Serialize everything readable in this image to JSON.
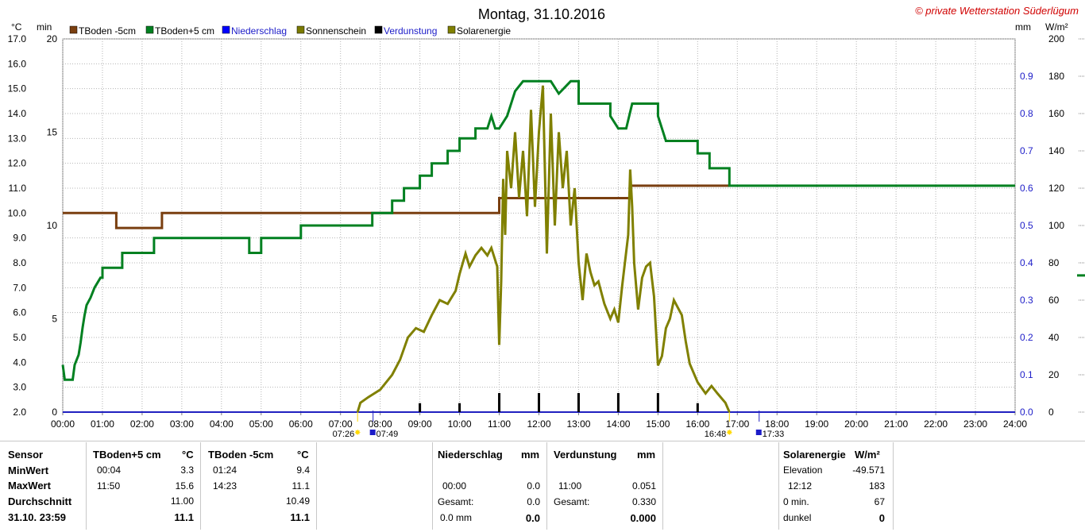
{
  "chart_data": {
    "type": "line",
    "title": "Montag, 31.10.2016",
    "copyright": "© private Wetterstation Süderlügum",
    "axis_labels": {
      "left_temp": "°C",
      "left_min": "min",
      "right_mm": "mm",
      "right_wm2": "W/m²"
    },
    "ylim_temp": [
      2.0,
      17.0
    ],
    "yticks_temp": [
      "17.0",
      "16.0",
      "15.0",
      "14.0",
      "13.0",
      "12.0",
      "11.0",
      "10.0",
      "9.0",
      "8.0",
      "7.0",
      "6.0",
      "5.0",
      "4.0",
      "3.0",
      "2.0"
    ],
    "ylim_min": [
      0,
      20
    ],
    "yticks_min": [
      "20",
      "15",
      "10",
      "5",
      "0"
    ],
    "ylim_mm": [
      0.0,
      1.0
    ],
    "yticks_mm": [
      "0.9",
      "0.8",
      "0.7",
      "0.6",
      "0.5",
      "0.4",
      "0.3",
      "0.2",
      "0.1",
      "0.0"
    ],
    "ylim_wm2": [
      0,
      200
    ],
    "yticks_wm2": [
      "200",
      "180",
      "160",
      "140",
      "120",
      "100",
      "80",
      "60",
      "40",
      "20",
      "0"
    ],
    "xlim_hours": [
      0,
      24
    ],
    "xticks": [
      "00:00",
      "01:00",
      "02:00",
      "03:00",
      "04:00",
      "05:00",
      "06:00",
      "07:00",
      "08:00",
      "09:00",
      "10:00",
      "11:00",
      "12:00",
      "13:00",
      "14:00",
      "15:00",
      "16:00",
      "17:00",
      "18:00",
      "19:00",
      "20:00",
      "21:00",
      "22:00",
      "23:00",
      "24:00"
    ],
    "grid": true,
    "legend_position": "top-left",
    "sun_times": {
      "sunrise": "07:26",
      "sunrise_h": 7.43,
      "dawn": "07:49",
      "dawn_h": 7.82,
      "sunset": "16:48",
      "sunset_h": 16.8,
      "dusk": "17:33",
      "dusk_h": 17.55
    },
    "series": [
      {
        "name": "TBoden -5cm",
        "color": "#7a3f10",
        "axis": "temp",
        "step": true,
        "points": [
          [
            0,
            10.0
          ],
          [
            1.35,
            10.0
          ],
          [
            1.35,
            9.4
          ],
          [
            2.5,
            9.4
          ],
          [
            2.5,
            10.0
          ],
          [
            11.0,
            10.0
          ],
          [
            11.0,
            10.6
          ],
          [
            14.3,
            10.6
          ],
          [
            14.3,
            11.1
          ],
          [
            16.8,
            11.1
          ]
        ]
      },
      {
        "name": "TBoden+5 cm",
        "color": "#008020",
        "axis": "temp",
        "step": true,
        "points": [
          [
            0,
            3.9
          ],
          [
            0.05,
            3.3
          ],
          [
            0.25,
            3.3
          ],
          [
            0.3,
            3.9
          ],
          [
            0.4,
            4.3
          ],
          [
            0.45,
            4.8
          ],
          [
            0.5,
            5.4
          ],
          [
            0.55,
            5.9
          ],
          [
            0.6,
            6.3
          ],
          [
            0.7,
            6.6
          ],
          [
            0.8,
            7.0
          ],
          [
            0.95,
            7.4
          ],
          [
            1.0,
            7.4
          ],
          [
            1.0,
            7.8
          ],
          [
            1.5,
            7.8
          ],
          [
            1.5,
            8.4
          ],
          [
            2.3,
            8.4
          ],
          [
            2.3,
            9.0
          ],
          [
            4.7,
            9.0
          ],
          [
            4.7,
            8.4
          ],
          [
            5.0,
            8.4
          ],
          [
            5.0,
            9.0
          ],
          [
            6.0,
            9.0
          ],
          [
            6.0,
            9.5
          ],
          [
            7.8,
            9.5
          ],
          [
            7.8,
            10.0
          ],
          [
            8.3,
            10.0
          ],
          [
            8.3,
            10.5
          ],
          [
            8.6,
            10.5
          ],
          [
            8.6,
            11.0
          ],
          [
            9.0,
            11.0
          ],
          [
            9.0,
            11.5
          ],
          [
            9.3,
            11.5
          ],
          [
            9.3,
            12.0
          ],
          [
            9.7,
            12.0
          ],
          [
            9.7,
            12.5
          ],
          [
            10.0,
            12.5
          ],
          [
            10.0,
            13.0
          ],
          [
            10.4,
            13.0
          ],
          [
            10.4,
            13.4
          ],
          [
            10.7,
            13.4
          ],
          [
            10.8,
            13.9
          ],
          [
            10.9,
            13.4
          ],
          [
            11.0,
            13.4
          ],
          [
            11.2,
            13.9
          ],
          [
            11.3,
            14.4
          ],
          [
            11.4,
            14.9
          ],
          [
            11.6,
            15.3
          ],
          [
            12.3,
            15.3
          ],
          [
            12.5,
            14.8
          ],
          [
            12.8,
            15.3
          ],
          [
            13.0,
            15.3
          ],
          [
            13.0,
            14.4
          ],
          [
            13.8,
            14.4
          ],
          [
            13.8,
            13.9
          ],
          [
            14.0,
            13.4
          ],
          [
            14.2,
            13.4
          ],
          [
            14.35,
            14.4
          ],
          [
            15.0,
            14.4
          ],
          [
            15.0,
            13.9
          ],
          [
            15.1,
            13.4
          ],
          [
            15.2,
            12.9
          ],
          [
            16.0,
            12.9
          ],
          [
            16.0,
            12.4
          ],
          [
            16.3,
            12.4
          ],
          [
            16.3,
            11.8
          ],
          [
            16.8,
            11.8
          ],
          [
            16.8,
            11.1
          ],
          [
            24.0,
            11.1
          ]
        ]
      },
      {
        "name": "Niederschlag",
        "color": "#0000ff",
        "axis": "mm",
        "bars": []
      },
      {
        "name": "Sonnenschein",
        "color": "#7a7a00",
        "axis": "min",
        "bars": []
      },
      {
        "name": "Verdunstung",
        "color": "#000000",
        "axis": "mm",
        "bar_width_h": 0.06,
        "bars": [
          [
            9.0,
            0.024
          ],
          [
            10.0,
            0.024
          ],
          [
            11.0,
            0.051
          ],
          [
            12.0,
            0.051
          ],
          [
            13.0,
            0.051
          ],
          [
            14.0,
            0.051
          ],
          [
            15.0,
            0.051
          ],
          [
            16.0,
            0.024
          ]
        ]
      },
      {
        "name": "Solarenergie",
        "color": "#808000",
        "axis": "wm2",
        "points": [
          [
            7.43,
            0
          ],
          [
            7.5,
            5
          ],
          [
            7.7,
            8
          ],
          [
            8.0,
            12
          ],
          [
            8.3,
            20
          ],
          [
            8.5,
            28
          ],
          [
            8.7,
            40
          ],
          [
            8.9,
            45
          ],
          [
            9.1,
            43
          ],
          [
            9.3,
            52
          ],
          [
            9.5,
            60
          ],
          [
            9.7,
            58
          ],
          [
            9.9,
            65
          ],
          [
            10.0,
            74
          ],
          [
            10.15,
            85
          ],
          [
            10.25,
            78
          ],
          [
            10.4,
            84
          ],
          [
            10.55,
            88
          ],
          [
            10.7,
            84
          ],
          [
            10.8,
            88
          ],
          [
            10.95,
            78
          ],
          [
            11.0,
            36
          ],
          [
            11.05,
            70
          ],
          [
            11.1,
            125
          ],
          [
            11.15,
            95
          ],
          [
            11.2,
            140
          ],
          [
            11.3,
            120
          ],
          [
            11.4,
            150
          ],
          [
            11.5,
            115
          ],
          [
            11.6,
            140
          ],
          [
            11.7,
            105
          ],
          [
            11.8,
            162
          ],
          [
            11.9,
            110
          ],
          [
            12.0,
            150
          ],
          [
            12.1,
            175
          ],
          [
            12.2,
            85
          ],
          [
            12.3,
            160
          ],
          [
            12.4,
            100
          ],
          [
            12.5,
            150
          ],
          [
            12.6,
            120
          ],
          [
            12.7,
            140
          ],
          [
            12.8,
            100
          ],
          [
            12.9,
            120
          ],
          [
            13.0,
            80
          ],
          [
            13.1,
            60
          ],
          [
            13.2,
            85
          ],
          [
            13.3,
            75
          ],
          [
            13.4,
            68
          ],
          [
            13.5,
            70
          ],
          [
            13.65,
            58
          ],
          [
            13.8,
            50
          ],
          [
            13.9,
            55
          ],
          [
            14.0,
            48
          ],
          [
            14.1,
            68
          ],
          [
            14.25,
            95
          ],
          [
            14.3,
            130
          ],
          [
            14.35,
            110
          ],
          [
            14.4,
            80
          ],
          [
            14.5,
            55
          ],
          [
            14.6,
            72
          ],
          [
            14.7,
            78
          ],
          [
            14.8,
            80
          ],
          [
            14.9,
            62
          ],
          [
            15.0,
            25
          ],
          [
            15.1,
            30
          ],
          [
            15.2,
            45
          ],
          [
            15.3,
            50
          ],
          [
            15.4,
            60
          ],
          [
            15.5,
            56
          ],
          [
            15.6,
            52
          ],
          [
            15.7,
            38
          ],
          [
            15.8,
            26
          ],
          [
            16.0,
            16
          ],
          [
            16.2,
            10
          ],
          [
            16.35,
            14
          ],
          [
            16.5,
            10
          ],
          [
            16.7,
            5
          ],
          [
            16.8,
            0
          ]
        ]
      }
    ]
  },
  "table": {
    "col_sensor": {
      "header": "Sensor",
      "rows": [
        "MinWert",
        "MaxWert",
        "Durchschnitt",
        "31.10. 23:59"
      ]
    },
    "col_t5": {
      "header": "TBoden+5 cm",
      "unit": "°C",
      "rows": [
        {
          "t": "00:04",
          "v": "3.3"
        },
        {
          "t": "11:50",
          "v": "15.6"
        },
        {
          "t": "",
          "v": "11.00"
        },
        {
          "t": "",
          "v": "11.1"
        }
      ]
    },
    "col_tm5": {
      "header": "TBoden -5cm",
      "unit": "°C",
      "rows": [
        {
          "t": "01:24",
          "v": "9.4"
        },
        {
          "t": "14:23",
          "v": "11.1"
        },
        {
          "t": "",
          "v": "10.49"
        },
        {
          "t": "",
          "v": "11.1"
        }
      ]
    },
    "col_rain": {
      "header": "Niederschlag",
      "unit": "mm",
      "rows": [
        {
          "t": "",
          "v": ""
        },
        {
          "t": "00:00",
          "v": "0.0"
        },
        {
          "t": "Gesamt:",
          "v": "0.0"
        },
        {
          "t": "0.0 mm",
          "v": "0.0"
        }
      ]
    },
    "col_evap": {
      "header": "Verdunstung",
      "unit": "mm",
      "rows": [
        {
          "t": "",
          "v": ""
        },
        {
          "t": "11:00",
          "v": "0.051"
        },
        {
          "t": "Gesamt:",
          "v": "0.330"
        },
        {
          "t": "",
          "v": "0.000"
        }
      ]
    },
    "col_solar": {
      "header": "Solarenergie",
      "unit": "W/m²",
      "rows": [
        {
          "t": "Elevation",
          "v": "-49.571"
        },
        {
          "t": "12:12",
          "v": "183"
        },
        {
          "t": "0 min.",
          "v": "67"
        },
        {
          "t": "dunkel",
          "v": "0"
        }
      ]
    }
  }
}
